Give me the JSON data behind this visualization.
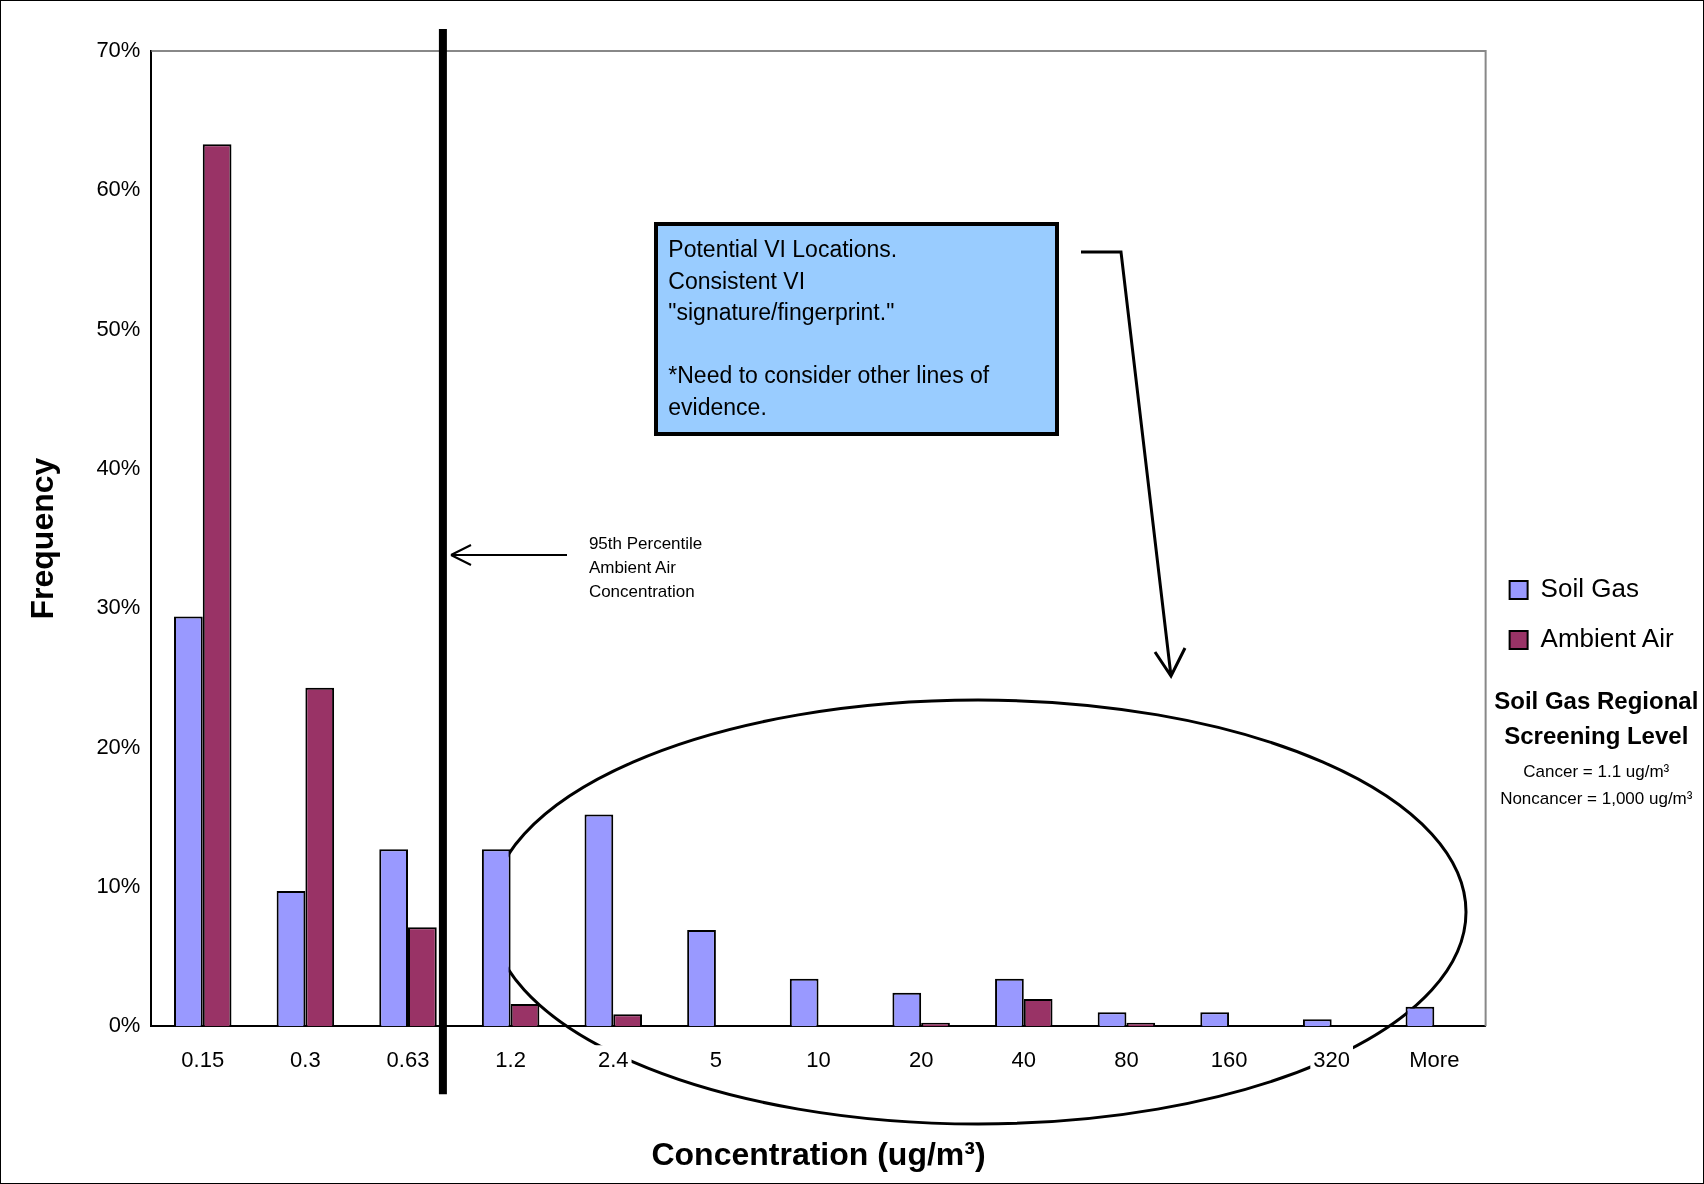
{
  "chart_data": {
    "type": "bar",
    "xlabel": "Concentration (ug/m³)",
    "ylabel": "Frequency",
    "categories": [
      "0.15",
      "0.3",
      "0.63",
      "1.2",
      "2.4",
      "5",
      "10",
      "20",
      "40",
      "80",
      "160",
      "320",
      "More"
    ],
    "series": [
      {
        "name": "Soil Gas",
        "color": "#9999ff",
        "values": [
          29.4,
          9.7,
          12.7,
          12.7,
          15.2,
          6.9,
          3.4,
          2.4,
          3.4,
          1.0,
          1.0,
          0.5,
          1.4
        ]
      },
      {
        "name": "Ambient Air",
        "color": "#993366",
        "values": [
          63.3,
          24.3,
          7.1,
          1.6,
          0.85,
          0,
          0,
          0.25,
          1.95,
          0.25,
          0,
          0,
          0
        ]
      }
    ],
    "ylim": [
      0,
      70
    ],
    "yticks": [
      {
        "value": 0,
        "label": "0%"
      },
      {
        "value": 10,
        "label": "10%"
      },
      {
        "value": 20,
        "label": "20%"
      },
      {
        "value": 30,
        "label": "30%"
      },
      {
        "value": 40,
        "label": "40%"
      },
      {
        "value": 50,
        "label": "50%"
      },
      {
        "value": 60,
        "label": "60%"
      },
      {
        "value": 70,
        "label": "70%"
      }
    ],
    "ref_lines": [
      {
        "axis": "x",
        "value": "0.63",
        "label": "95th Percentile\nAmbient Air\nConcentration",
        "color": "#000000"
      }
    ],
    "annotations": [
      "Potential VI Locations.\nConsistent VI\n\"signature/fingerprint.\"\n\n*Need to consider other lines of evidence.",
      "Soil Gas Regional Screening Level",
      "Cancer = 1.1 ug/m³",
      "Noncancer = 1,000 ug/m³"
    ],
    "legend": "right",
    "grid": false
  }
}
